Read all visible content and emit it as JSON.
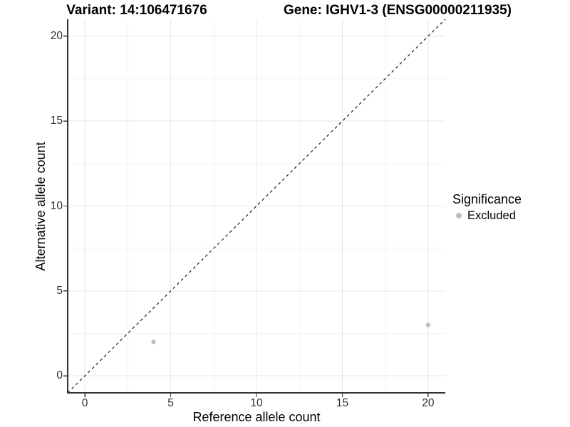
{
  "chart_data": {
    "type": "scatter",
    "titles": {
      "left": "Variant: 14:106471676",
      "right": "Gene: IGHV1-3 (ENSG00000211935)"
    },
    "xlabel": "Reference allele count",
    "ylabel": "Alternative allele count",
    "xlim": [
      -1,
      21
    ],
    "ylim": [
      -1,
      21
    ],
    "x_ticks": [
      0,
      5,
      10,
      15,
      20
    ],
    "y_ticks": [
      0,
      5,
      10,
      15,
      20
    ],
    "x_minor_ticks": [
      2.5,
      7.5,
      12.5,
      17.5
    ],
    "y_minor_ticks": [
      2.5,
      7.5,
      12.5,
      17.5
    ],
    "grid": "major+minor",
    "series": [
      {
        "name": "Excluded",
        "color": "#bfbfbf",
        "points": [
          [
            4,
            2
          ],
          [
            20,
            3
          ]
        ]
      }
    ],
    "reference_line": {
      "style": "dashed",
      "from": [
        -1,
        -1
      ],
      "to": [
        21,
        21
      ],
      "color": "#1a1a1a"
    },
    "legend": {
      "title": "Significance",
      "position": "right",
      "entries": [
        {
          "label": "Excluded",
          "color": "#bfbfbf",
          "marker": "circle"
        }
      ]
    },
    "colors": {
      "grid_major": "#e7e7e7",
      "grid_minor": "#f3f3f3",
      "axis": "#333333",
      "tick_text": "#2e2e2e",
      "background": "#ffffff"
    }
  }
}
